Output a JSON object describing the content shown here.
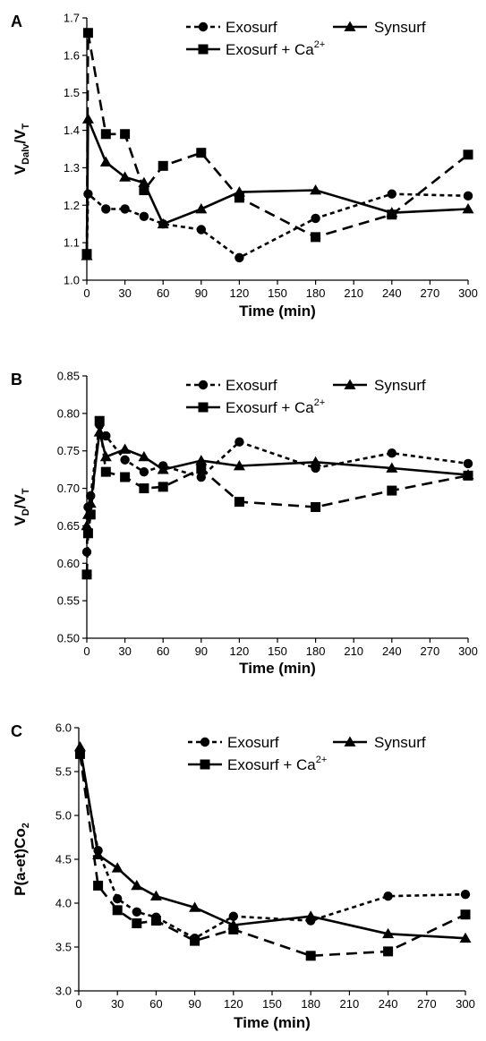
{
  "chart_data": [
    {
      "type": "line",
      "panel": "A",
      "ylabel_main": "V",
      "ylabel_sub1": "Dalv",
      "ylabel_mid": "/V",
      "ylabel_sub2": "T",
      "xlabel": "Time (min)",
      "xlim": [
        0,
        300
      ],
      "ylim": [
        1.0,
        1.7
      ],
      "xticks": [
        0,
        30,
        60,
        90,
        120,
        150,
        180,
        210,
        240,
        270,
        300
      ],
      "yticks": [
        1.0,
        1.1,
        1.2,
        1.3,
        1.4,
        1.5,
        1.6,
        1.7
      ],
      "ydecimals": 1,
      "series": [
        {
          "name": "Exosurf",
          "marker": "circle",
          "dash": "dotted",
          "x": [
            0,
            1,
            15,
            30,
            45,
            60,
            90,
            120,
            180,
            240,
            300
          ],
          "y": [
            1.07,
            1.23,
            1.19,
            1.19,
            1.17,
            1.15,
            1.135,
            1.06,
            1.165,
            1.23,
            1.225
          ]
        },
        {
          "name": "Synsurf",
          "marker": "triangle",
          "dash": "solid",
          "x": [
            0,
            1,
            15,
            30,
            45,
            60,
            90,
            120,
            180,
            240,
            300
          ],
          "y": [
            1.065,
            1.43,
            1.315,
            1.275,
            1.26,
            1.15,
            1.19,
            1.235,
            1.24,
            1.18,
            1.19
          ]
        },
        {
          "name": "Exosurf + Ca",
          "marker": "square",
          "dash": "dashed",
          "x": [
            0,
            1,
            15,
            30,
            45,
            60,
            90,
            120,
            180,
            240,
            300
          ],
          "y": [
            1.07,
            1.66,
            1.39,
            1.39,
            1.24,
            1.305,
            1.34,
            1.22,
            1.115,
            1.175,
            1.335
          ]
        }
      ]
    },
    {
      "type": "line",
      "panel": "B",
      "ylabel_main": "V",
      "ylabel_sub1": "D",
      "ylabel_mid": "/V",
      "ylabel_sub2": "T",
      "xlabel": "Time (min)",
      "xlim": [
        0,
        300
      ],
      "ylim": [
        0.5,
        0.85
      ],
      "xticks": [
        0,
        30,
        60,
        90,
        120,
        150,
        180,
        210,
        240,
        270,
        300
      ],
      "yticks": [
        0.5,
        0.55,
        0.6,
        0.65,
        0.7,
        0.75,
        0.8,
        0.85
      ],
      "ydecimals": 2,
      "series": [
        {
          "name": "Exosurf",
          "marker": "circle",
          "dash": "dotted",
          "x": [
            0,
            1,
            3,
            10,
            15,
            30,
            45,
            60,
            90,
            120,
            180,
            240,
            300
          ],
          "y": [
            0.615,
            0.675,
            0.69,
            0.785,
            0.77,
            0.738,
            0.722,
            0.73,
            0.715,
            0.762,
            0.727,
            0.747,
            0.733
          ]
        },
        {
          "name": "Synsurf",
          "marker": "triangle",
          "dash": "solid",
          "x": [
            0,
            1,
            3,
            10,
            15,
            30,
            45,
            60,
            90,
            120,
            180,
            240,
            300
          ],
          "y": [
            0.65,
            0.665,
            0.68,
            0.775,
            0.742,
            0.752,
            0.742,
            0.725,
            0.737,
            0.73,
            0.735,
            0.727,
            0.718
          ]
        },
        {
          "name": "Exosurf + Ca",
          "marker": "square",
          "dash": "dashed",
          "x": [
            0,
            1,
            3,
            10,
            15,
            30,
            45,
            60,
            90,
            120,
            180,
            240,
            300
          ],
          "y": [
            0.585,
            0.64,
            0.665,
            0.79,
            0.722,
            0.715,
            0.7,
            0.702,
            0.726,
            0.682,
            0.675,
            0.697,
            0.717
          ]
        }
      ]
    },
    {
      "type": "line",
      "panel": "C",
      "ylabel_main": "P(a-et)Co",
      "ylabel_sub1": "2",
      "ylabel_mid": "",
      "ylabel_sub2": "",
      "xlabel": "Time (min)",
      "xlim": [
        0,
        300
      ],
      "ylim": [
        3.0,
        6.0
      ],
      "xticks": [
        0,
        30,
        60,
        90,
        120,
        150,
        180,
        210,
        240,
        270,
        300
      ],
      "yticks": [
        3.0,
        3.5,
        4.0,
        4.5,
        5.0,
        5.5,
        6.0
      ],
      "ydecimals": 1,
      "series": [
        {
          "name": "Exosurf",
          "marker": "circle",
          "dash": "dotted",
          "x": [
            1,
            15,
            30,
            45,
            60,
            90,
            120,
            180,
            240,
            300
          ],
          "y": [
            5.7,
            4.6,
            4.05,
            3.9,
            3.84,
            3.6,
            3.85,
            3.8,
            4.08,
            4.1
          ]
        },
        {
          "name": "Synsurf",
          "marker": "triangle",
          "dash": "solid",
          "x": [
            1,
            15,
            30,
            45,
            60,
            90,
            120,
            180,
            240,
            300
          ],
          "y": [
            5.78,
            4.55,
            4.4,
            4.2,
            4.08,
            3.95,
            3.75,
            3.85,
            3.65,
            3.6
          ]
        },
        {
          "name": "Exosurf + Ca",
          "marker": "square",
          "dash": "dashed",
          "x": [
            1,
            15,
            30,
            45,
            60,
            90,
            120,
            180,
            240,
            300
          ],
          "y": [
            5.7,
            4.2,
            3.92,
            3.77,
            3.8,
            3.57,
            3.7,
            3.4,
            3.45,
            3.87
          ]
        }
      ]
    }
  ],
  "legend": {
    "exosurf": "Exosurf",
    "synsurf": "Synsurf",
    "exosurf_ca": "Exosurf + Ca",
    "ca_superscript": "2+"
  }
}
